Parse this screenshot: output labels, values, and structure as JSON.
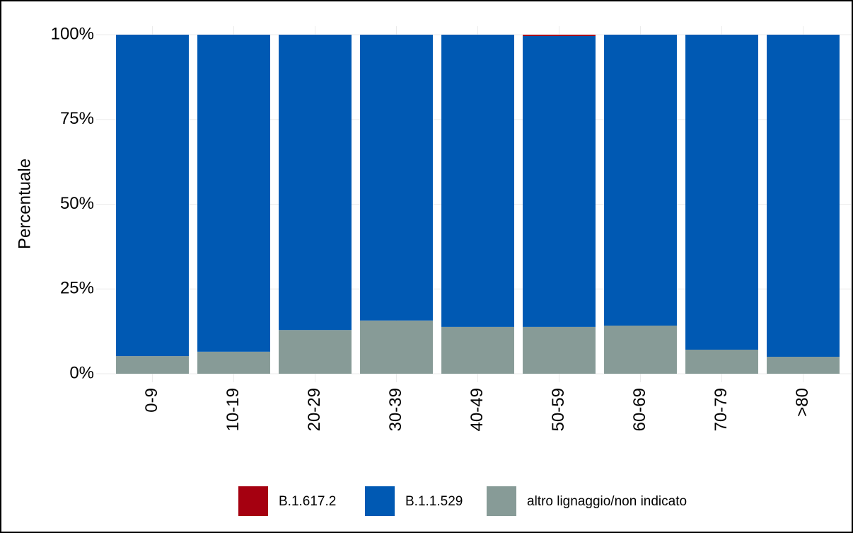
{
  "chart_data": {
    "type": "stacked_bar",
    "y_label": "Percentuale",
    "categories": [
      "0-9",
      "10-19",
      "20-29",
      "30-39",
      "40-49",
      "50-59",
      "60-69",
      "70-79",
      ">80"
    ],
    "series": [
      {
        "name": "B.1.617.2",
        "color": "#a50010",
        "values": [
          0,
          0,
          0,
          0,
          0,
          0.4,
          0,
          0,
          0
        ]
      },
      {
        "name": "B.1.1.529",
        "color": "#0059b3",
        "values": [
          94.8,
          93.5,
          87.1,
          84.3,
          86.2,
          85.8,
          85.8,
          92.9,
          95.0
        ]
      },
      {
        "name": "altro lignaggio/non indicato",
        "color": "#879b97",
        "values": [
          5.2,
          6.5,
          12.9,
          15.7,
          13.8,
          13.8,
          14.2,
          7.1,
          5.0
        ]
      }
    ],
    "ylim": [
      0,
      100
    ],
    "yticks": [
      {
        "value": 0,
        "label": "0%"
      },
      {
        "value": 25,
        "label": "25%"
      },
      {
        "value": 50,
        "label": "50%"
      },
      {
        "value": 75,
        "label": "75%"
      },
      {
        "value": 100,
        "label": "100%"
      }
    ],
    "grid": true
  }
}
